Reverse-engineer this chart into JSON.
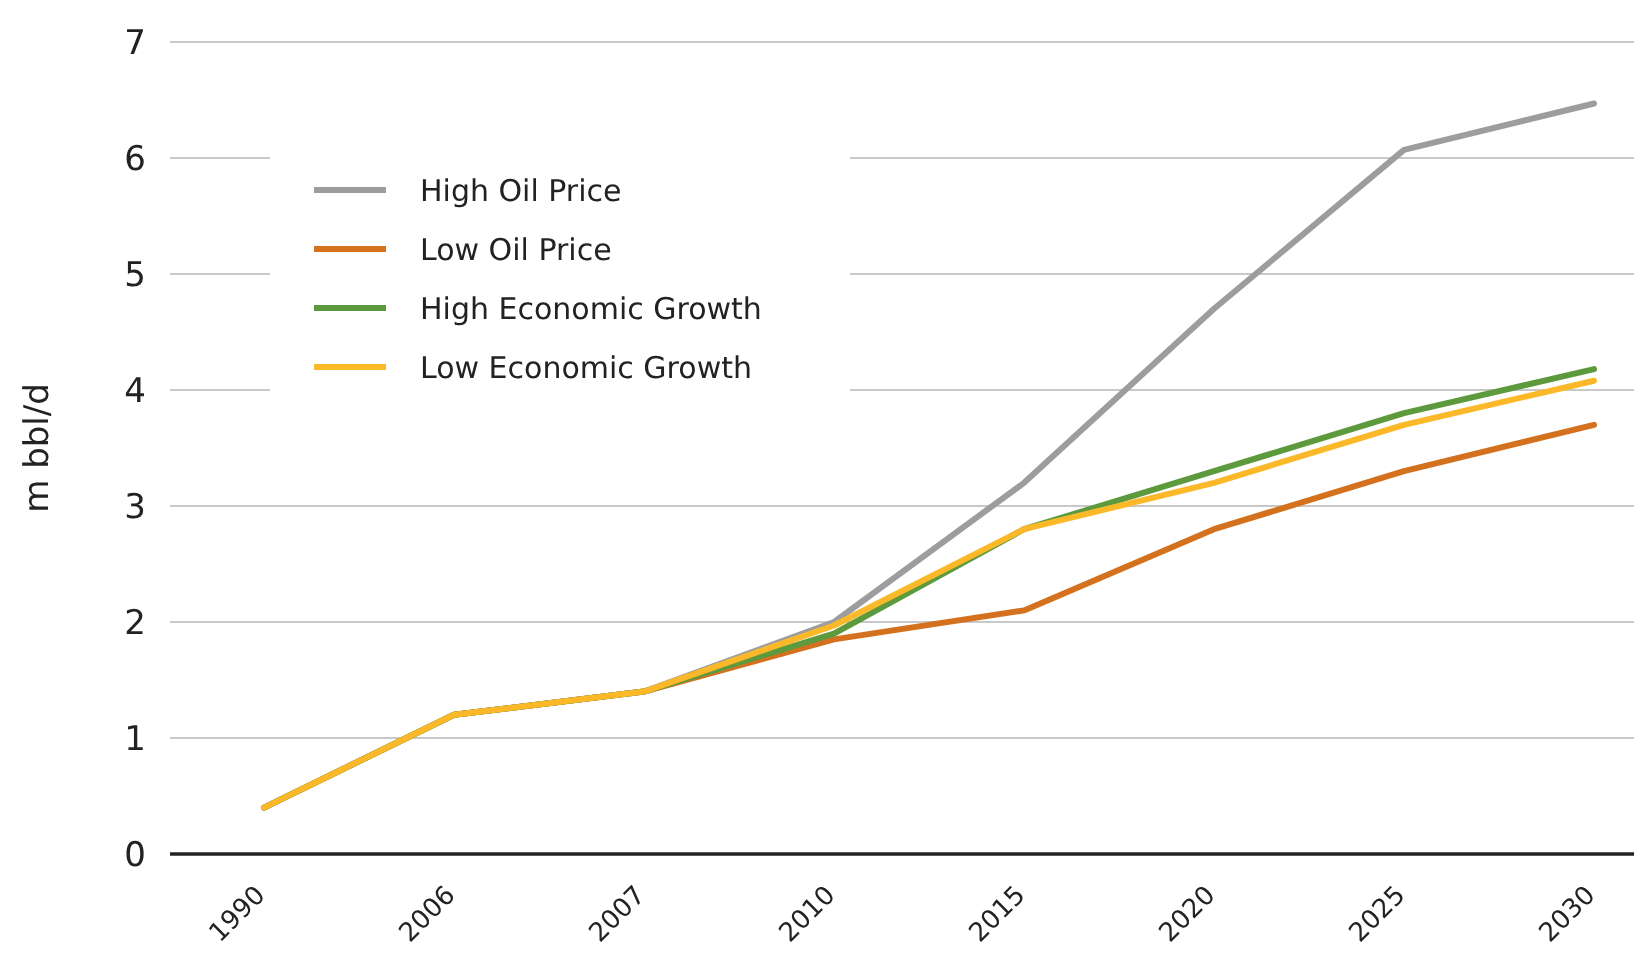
{
  "chart_data": {
    "type": "line",
    "ylabel": "m bbl/d",
    "categories": [
      "1990",
      "2006",
      "2007",
      "2010",
      "2015",
      "2020",
      "2025",
      "2030"
    ],
    "ylim": [
      0,
      7
    ],
    "yticks": [
      0,
      1,
      2,
      3,
      4,
      5,
      6,
      7
    ],
    "grid": "y",
    "legend": "top left",
    "marker": "none",
    "line_style": "solid",
    "series": [
      {
        "name": "High Oil Price",
        "color": "#9d9d9d",
        "values": [
          0.4,
          1.2,
          1.4,
          2.0,
          3.2,
          4.7,
          6.07,
          6.47
        ]
      },
      {
        "name": "Low Oil Price",
        "color": "#d4711f",
        "values": [
          0.4,
          1.2,
          1.4,
          1.85,
          2.1,
          2.8,
          3.3,
          3.7
        ]
      },
      {
        "name": "High Economic Growth",
        "color": "#5d9a3e",
        "values": [
          0.4,
          1.2,
          1.4,
          1.9,
          2.8,
          3.3,
          3.8,
          4.18
        ]
      },
      {
        "name": "Low Economic Growth",
        "color": "#fbb829",
        "values": [
          0.4,
          1.2,
          1.4,
          1.97,
          2.8,
          3.2,
          3.7,
          4.08
        ]
      }
    ]
  }
}
